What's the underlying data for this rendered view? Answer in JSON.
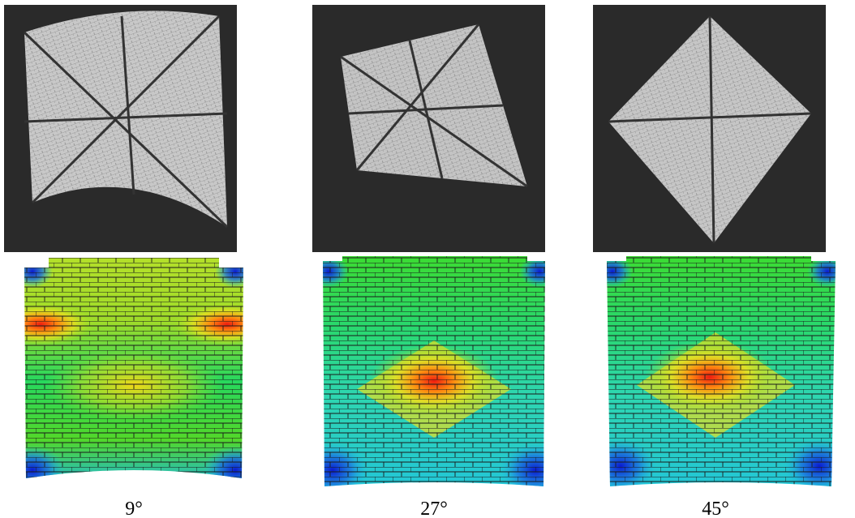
{
  "panels": [
    {
      "label": "9°"
    },
    {
      "label": "27°"
    },
    {
      "label": "45°"
    }
  ]
}
